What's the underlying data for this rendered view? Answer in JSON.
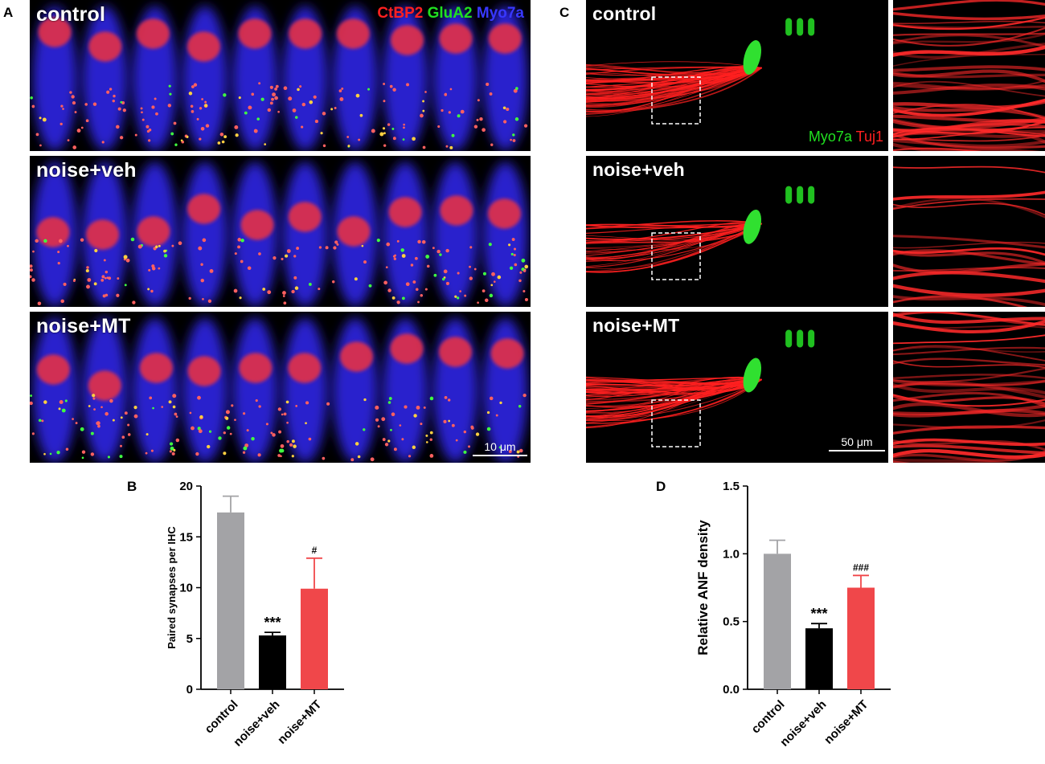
{
  "panel_labels": {
    "a": "A",
    "b": "B",
    "c": "C",
    "d": "D"
  },
  "panel_a": {
    "rows": [
      {
        "condition": "control"
      },
      {
        "condition": "noise+veh"
      },
      {
        "condition": "noise+MT"
      }
    ],
    "legend": [
      {
        "text": "CtBP2",
        "color": "#ff2020"
      },
      {
        "text": "GluA2",
        "color": "#20e020"
      },
      {
        "text": "Myo7a",
        "color": "#3030ff"
      }
    ],
    "scale_bar": "10 μm"
  },
  "panel_c": {
    "rows": [
      {
        "condition": "control"
      },
      {
        "condition": "noise+veh"
      },
      {
        "condition": "noise+MT"
      }
    ],
    "legend": [
      {
        "text": "Myo7a",
        "color": "#20e020"
      },
      {
        "text": "Tuj1",
        "color": "#ff2020"
      }
    ],
    "scale_bar": "50 μm"
  },
  "chart_data": [
    {
      "type": "bar",
      "panel": "B",
      "categories": [
        "control",
        "noise+veh",
        "noise+MT"
      ],
      "values": [
        17.4,
        5.3,
        9.9
      ],
      "errors": [
        1.6,
        0.3,
        3.0
      ],
      "colors": [
        "#a3a3a6",
        "#000000",
        "#f0474a"
      ],
      "annotations": [
        "",
        "***",
        "#"
      ],
      "ylabel": "Paired synapses per IHC",
      "ylim": [
        0,
        20
      ],
      "yticks": [
        0,
        5,
        10,
        15,
        20
      ]
    },
    {
      "type": "bar",
      "panel": "D",
      "categories": [
        "control",
        "noise+veh",
        "noise+MT"
      ],
      "values": [
        1.0,
        0.45,
        0.75
      ],
      "errors": [
        0.1,
        0.035,
        0.09
      ],
      "colors": [
        "#a3a3a6",
        "#000000",
        "#f0474a"
      ],
      "annotations": [
        "",
        "***",
        "###"
      ],
      "ylabel": "Relative ANF density",
      "ylim": [
        0,
        1.5
      ],
      "yticks": [
        "0.0",
        "0.5",
        "1.0",
        "1.5"
      ]
    }
  ]
}
